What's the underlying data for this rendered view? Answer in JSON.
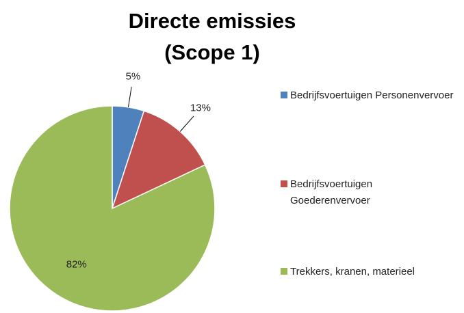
{
  "chart_data": {
    "type": "pie",
    "title": "Directe emissies (Scope 1)",
    "categories": [
      "Bedrijfsvoertuigen Personenvervoer",
      "Bedrijfsvoertuigen Goederenvervoer",
      "Trekkers, kranen, materieel"
    ],
    "values": [
      5,
      13,
      82
    ],
    "value_labels": [
      "5%",
      "13%",
      "82%"
    ],
    "colors": [
      "#4f81bd",
      "#c0504d",
      "#9bbb59"
    ],
    "legend": "right"
  }
}
